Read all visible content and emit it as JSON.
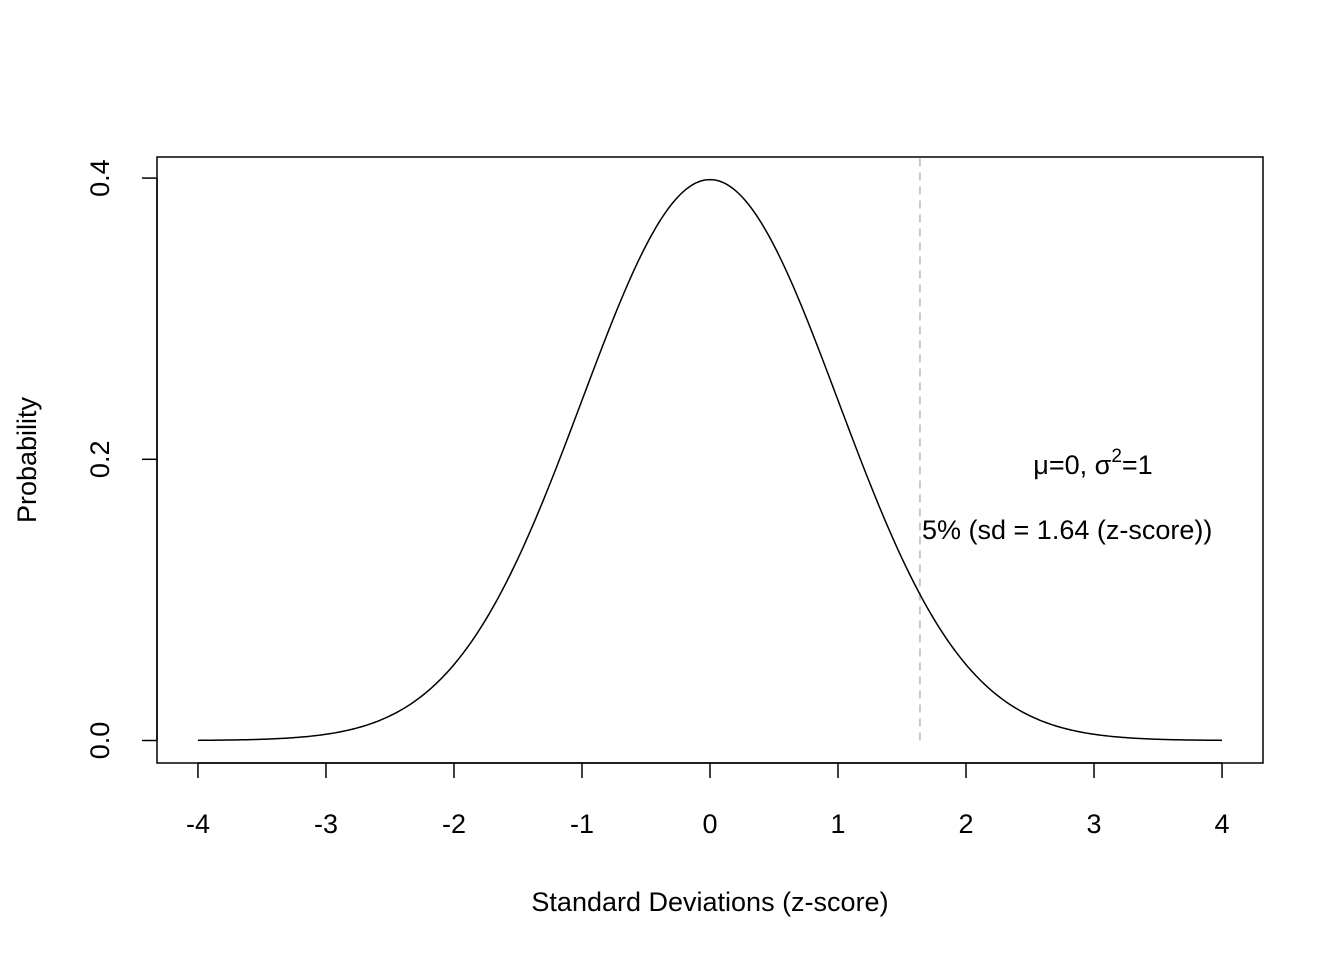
{
  "chart_data": {
    "type": "line",
    "title": "",
    "xlabel": "Standard Deviations (z-score)",
    "ylabel": "Probability",
    "xlim": [
      -4.32,
      4.32
    ],
    "ylim": [
      -0.016,
      0.415
    ],
    "x_ticks": [
      -4,
      -3,
      -2,
      -1,
      0,
      1,
      2,
      3,
      4
    ],
    "x_tick_labels": [
      "-4",
      "-3",
      "-2",
      "-1",
      "0",
      "1",
      "2",
      "3",
      "4"
    ],
    "y_ticks": [
      0.0,
      0.2,
      0.4
    ],
    "y_tick_labels": [
      "0.0",
      "0.2",
      "0.4"
    ],
    "grid": false,
    "series": [
      {
        "x": [
          -4.0,
          -3.5,
          -3.0,
          -2.5,
          -2.0,
          -1.75,
          -1.5,
          -1.25,
          -1.0,
          -0.75,
          -0.5,
          -0.25,
          0.0,
          0.25,
          0.5,
          0.75,
          1.0,
          1.25,
          1.5,
          1.75,
          2.0,
          2.5,
          3.0,
          3.5,
          4.0
        ],
        "y": [
          0.0001,
          0.0009,
          0.0044,
          0.0175,
          0.054,
          0.0863,
          0.1295,
          0.1826,
          0.242,
          0.3011,
          0.3521,
          0.3867,
          0.3989,
          0.3867,
          0.3521,
          0.3011,
          0.242,
          0.1826,
          0.1295,
          0.0863,
          0.054,
          0.0175,
          0.0044,
          0.0009,
          0.0001
        ]
      }
    ],
    "reference_line": {
      "x": 1.64,
      "y_from": 0.0,
      "color": "#c8c8c8",
      "style": "dashed"
    },
    "annotations": {
      "params": {
        "mu": "μ",
        "eq0": "=0, ",
        "sigma": "σ",
        "sup": "2",
        "eq1": "=1"
      },
      "cutoff": "5% (sd = 1.64 (z-score))"
    }
  }
}
